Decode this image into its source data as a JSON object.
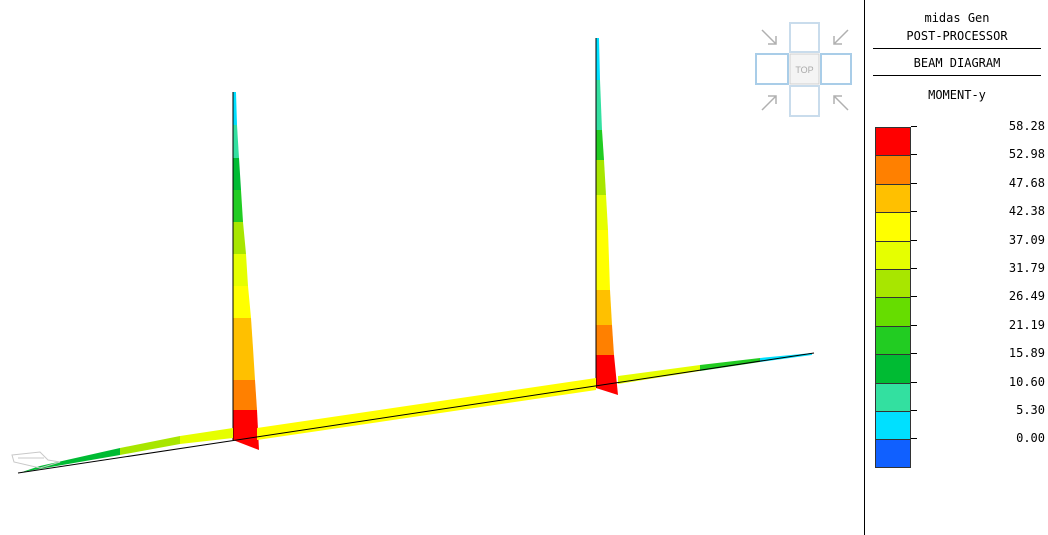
{
  "header": {
    "app_name": "midas Gen",
    "module": "POST-PROCESSOR",
    "diagram": "BEAM DIAGRAM",
    "component": "MOMENT-y"
  },
  "legend": {
    "values": [
      "58.28",
      "52.98",
      "47.68",
      "42.38",
      "37.09",
      "31.79",
      "26.49",
      "21.19",
      "15.89",
      "10.60",
      "5.30",
      "0.00"
    ],
    "colors": [
      "#ff0000",
      "#ff8000",
      "#ffc000",
      "#ffff00",
      "#e6ff00",
      "#a8e600",
      "#66dd00",
      "#22cc22",
      "#00bb33",
      "#33e0a0",
      "#00e0ff",
      "#1060ff"
    ]
  },
  "view_cube": {
    "face_label": "TOP",
    "icons": [
      "zoom-in-arrow-icon",
      "zoom-out-arrow-icon",
      "pan-left-icon",
      "pan-right-icon"
    ]
  },
  "model": {
    "beam_diagram_color_levels": [
      "red",
      "orange",
      "yellow",
      "green",
      "cyan"
    ]
  }
}
